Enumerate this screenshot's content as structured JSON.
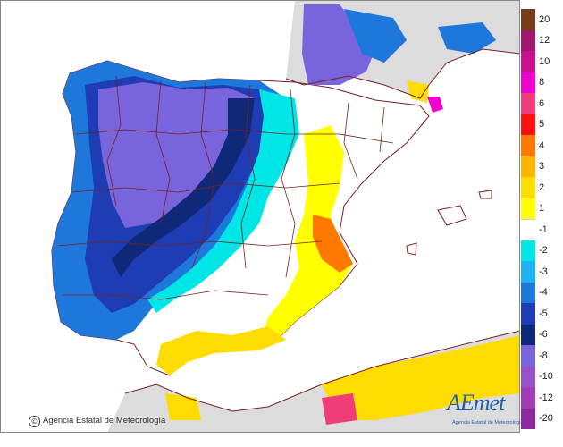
{
  "credit": {
    "symbol": "©",
    "text": "Agencia Estatal de Meteorología"
  },
  "logo": {
    "word": "AEmet",
    "subtitle": "Agencia Estatal de Meteorología"
  },
  "legend": [
    {
      "label": "20",
      "color": "#7a3b1a"
    },
    {
      "label": "12",
      "color": "#a0186e"
    },
    {
      "label": "10",
      "color": "#c8108e"
    },
    {
      "label": "8",
      "color": "#f000d0"
    },
    {
      "label": "6",
      "color": "#f03c78"
    },
    {
      "label": "5",
      "color": "#ff1010"
    },
    {
      "label": "4",
      "color": "#ff7800"
    },
    {
      "label": "3",
      "color": "#ffb400"
    },
    {
      "label": "2",
      "color": "#ffdc00"
    },
    {
      "label": "1",
      "color": "#ffff00"
    },
    {
      "label": "-1",
      "color": "#ffffff"
    },
    {
      "label": "-2",
      "color": "#00e6e6"
    },
    {
      "label": "-3",
      "color": "#1eb4f0"
    },
    {
      "label": "-4",
      "color": "#1e78dc"
    },
    {
      "label": "-5",
      "color": "#1e3cb4"
    },
    {
      "label": "-6",
      "color": "#102878"
    },
    {
      "label": "-8",
      "color": "#7864dc"
    },
    {
      "label": "-10",
      "color": "#9650c8"
    },
    {
      "label": "-12",
      "color": "#a03cb4"
    },
    {
      "label": "-20",
      "color": "#8c28a0"
    }
  ]
}
